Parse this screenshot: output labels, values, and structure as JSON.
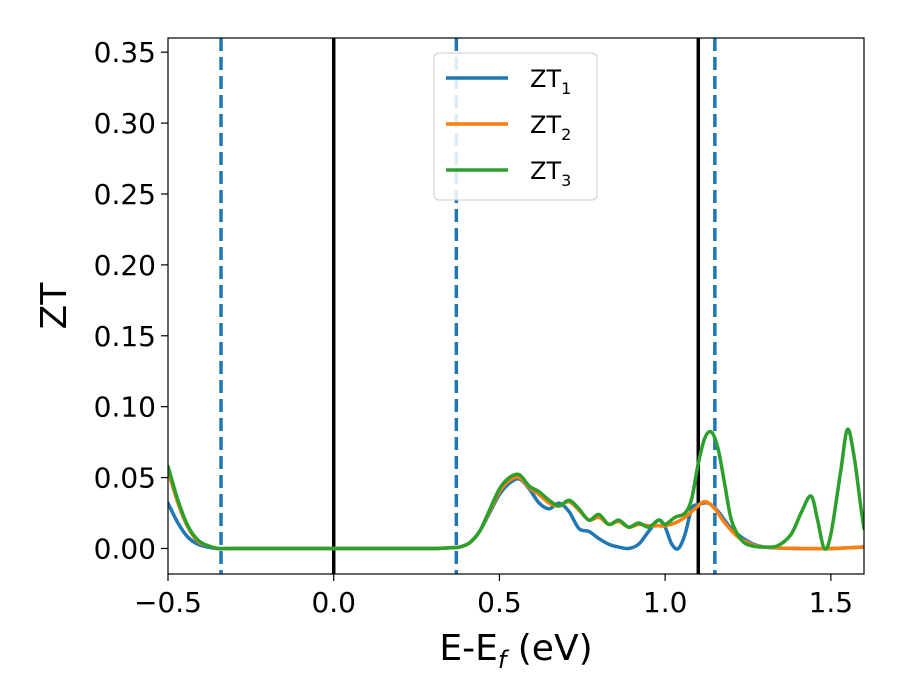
{
  "chart_data": {
    "type": "line",
    "title": "",
    "xlabel": {
      "main": "E-E",
      "sub": "f",
      "suffix": " (eV)"
    },
    "ylabel": "ZT",
    "xlim": [
      -0.5,
      1.6
    ],
    "ylim": [
      -0.018,
      0.36
    ],
    "x_ticks": [
      -0.5,
      0.0,
      0.5,
      1.0,
      1.5
    ],
    "x_tick_labels": [
      "−0.5",
      "0.0",
      "0.5",
      "1.0",
      "1.5"
    ],
    "y_ticks": [
      0.0,
      0.05,
      0.1,
      0.15,
      0.2,
      0.25,
      0.3,
      0.35
    ],
    "y_tick_labels": [
      "0.00",
      "0.05",
      "0.10",
      "0.15",
      "0.20",
      "0.25",
      "0.30",
      "0.35"
    ],
    "grid": false,
    "legend_position": "top-center",
    "vertical_lines": [
      {
        "x": -0.34,
        "style": "dashed",
        "color": "#1f77b4"
      },
      {
        "x": 0.0,
        "style": "solid",
        "color": "#000000"
      },
      {
        "x": 0.37,
        "style": "dashed",
        "color": "#1f77b4"
      },
      {
        "x": 1.1,
        "style": "solid",
        "color": "#000000"
      },
      {
        "x": 1.15,
        "style": "dashed",
        "color": "#1f77b4"
      }
    ],
    "series": [
      {
        "name": "ZT",
        "sub": "1",
        "color": "#1f77b4",
        "x": [
          -0.5,
          -0.47,
          -0.44,
          -0.41,
          -0.38,
          -0.35,
          -0.3,
          -0.2,
          0.0,
          0.2,
          0.3,
          0.35,
          0.38,
          0.41,
          0.44,
          0.47,
          0.5,
          0.53,
          0.56,
          0.59,
          0.62,
          0.65,
          0.68,
          0.71,
          0.74,
          0.77,
          0.8,
          0.83,
          0.86,
          0.89,
          0.92,
          0.95,
          0.98,
          1.0,
          1.02,
          1.04,
          1.06,
          1.08,
          1.1,
          1.13,
          1.16,
          1.2,
          1.25,
          1.3,
          1.4,
          1.5,
          1.6
        ],
        "y": [
          0.032,
          0.018,
          0.008,
          0.003,
          0.001,
          0.0,
          0.0,
          0.0,
          0.0,
          0.0,
          0.0,
          0.0005,
          0.001,
          0.004,
          0.012,
          0.025,
          0.038,
          0.046,
          0.049,
          0.042,
          0.032,
          0.028,
          0.032,
          0.026,
          0.014,
          0.012,
          0.007,
          0.003,
          0.001,
          0.0,
          0.003,
          0.012,
          0.02,
          0.015,
          0.003,
          0.0,
          0.01,
          0.028,
          0.031,
          0.032,
          0.026,
          0.014,
          0.005,
          0.001,
          0.0,
          0.0,
          0.001
        ]
      },
      {
        "name": "ZT",
        "sub": "2",
        "color": "#ff7f0e",
        "x": [
          -0.5,
          -0.47,
          -0.44,
          -0.41,
          -0.38,
          -0.35,
          -0.3,
          -0.2,
          0.0,
          0.2,
          0.3,
          0.35,
          0.38,
          0.41,
          0.44,
          0.47,
          0.5,
          0.53,
          0.56,
          0.59,
          0.62,
          0.65,
          0.68,
          0.71,
          0.74,
          0.77,
          0.8,
          0.83,
          0.86,
          0.89,
          0.92,
          0.95,
          0.98,
          1.0,
          1.03,
          1.06,
          1.09,
          1.12,
          1.15,
          1.18,
          1.22,
          1.26,
          1.3,
          1.4,
          1.5,
          1.6
        ],
        "y": [
          0.055,
          0.032,
          0.015,
          0.005,
          0.002,
          0.0,
          0.0,
          0.0,
          0.0,
          0.0,
          0.0,
          0.0005,
          0.001,
          0.004,
          0.012,
          0.026,
          0.04,
          0.048,
          0.05,
          0.043,
          0.038,
          0.032,
          0.03,
          0.033,
          0.027,
          0.02,
          0.022,
          0.017,
          0.019,
          0.015,
          0.017,
          0.016,
          0.016,
          0.016,
          0.018,
          0.022,
          0.028,
          0.033,
          0.028,
          0.018,
          0.008,
          0.003,
          0.001,
          0.0,
          0.0,
          0.001
        ]
      },
      {
        "name": "ZT",
        "sub": "3",
        "color": "#2ca02c",
        "x": [
          -0.5,
          -0.47,
          -0.44,
          -0.41,
          -0.38,
          -0.35,
          -0.3,
          -0.2,
          0.0,
          0.2,
          0.3,
          0.35,
          0.38,
          0.41,
          0.44,
          0.47,
          0.5,
          0.53,
          0.56,
          0.59,
          0.62,
          0.65,
          0.68,
          0.71,
          0.74,
          0.77,
          0.8,
          0.83,
          0.86,
          0.89,
          0.92,
          0.95,
          0.98,
          1.0,
          1.03,
          1.06,
          1.08,
          1.1,
          1.12,
          1.14,
          1.16,
          1.18,
          1.2,
          1.23,
          1.26,
          1.3,
          1.34,
          1.38,
          1.41,
          1.44,
          1.46,
          1.48,
          1.5,
          1.53,
          1.55,
          1.57,
          1.59,
          1.6
        ],
        "y": [
          0.058,
          0.034,
          0.016,
          0.006,
          0.002,
          0.0,
          0.0,
          0.0,
          0.0,
          0.0,
          0.0,
          0.0005,
          0.001,
          0.004,
          0.012,
          0.027,
          0.042,
          0.05,
          0.052,
          0.044,
          0.04,
          0.034,
          0.03,
          0.034,
          0.028,
          0.02,
          0.024,
          0.017,
          0.02,
          0.015,
          0.018,
          0.015,
          0.02,
          0.017,
          0.022,
          0.025,
          0.035,
          0.06,
          0.078,
          0.082,
          0.07,
          0.045,
          0.02,
          0.006,
          0.002,
          0.001,
          0.002,
          0.01,
          0.025,
          0.037,
          0.02,
          0.0,
          0.01,
          0.055,
          0.084,
          0.065,
          0.03,
          0.014
        ]
      }
    ]
  }
}
